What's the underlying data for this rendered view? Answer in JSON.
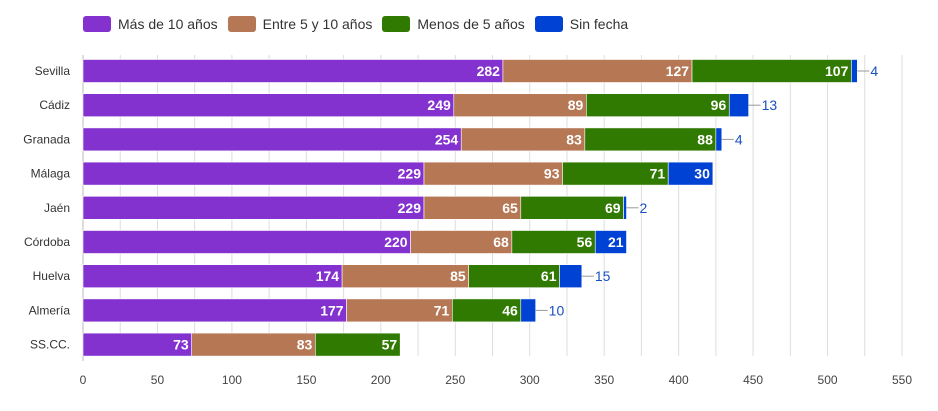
{
  "chart_data": {
    "type": "bar",
    "orientation": "horizontal",
    "stacked": true,
    "categories": [
      "Sevilla",
      "Cádiz",
      "Granada",
      "Málaga",
      "Jaén",
      "Córdoba",
      "Huelva",
      "Almería",
      "SS.CC."
    ],
    "series": [
      {
        "name": "Más de 10 años",
        "color": "#8432cf",
        "values": [
          282,
          249,
          254,
          229,
          229,
          220,
          174,
          177,
          73
        ]
      },
      {
        "name": "Entre 5 y 10 años",
        "color": "#b57754",
        "values": [
          127,
          89,
          83,
          93,
          65,
          68,
          85,
          71,
          83
        ]
      },
      {
        "name": "Menos de 5 años",
        "color": "#307a02",
        "values": [
          107,
          96,
          88,
          71,
          69,
          56,
          61,
          46,
          57
        ]
      },
      {
        "name": "Sin fecha",
        "color": "#0042d4",
        "values": [
          4,
          13,
          4,
          30,
          2,
          21,
          15,
          10,
          0
        ]
      }
    ],
    "xlim": [
      0,
      550
    ],
    "xticks": [
      0,
      50,
      100,
      150,
      200,
      250,
      300,
      350,
      400,
      450,
      500,
      550
    ],
    "grid": true,
    "legend_position": "top-left"
  }
}
